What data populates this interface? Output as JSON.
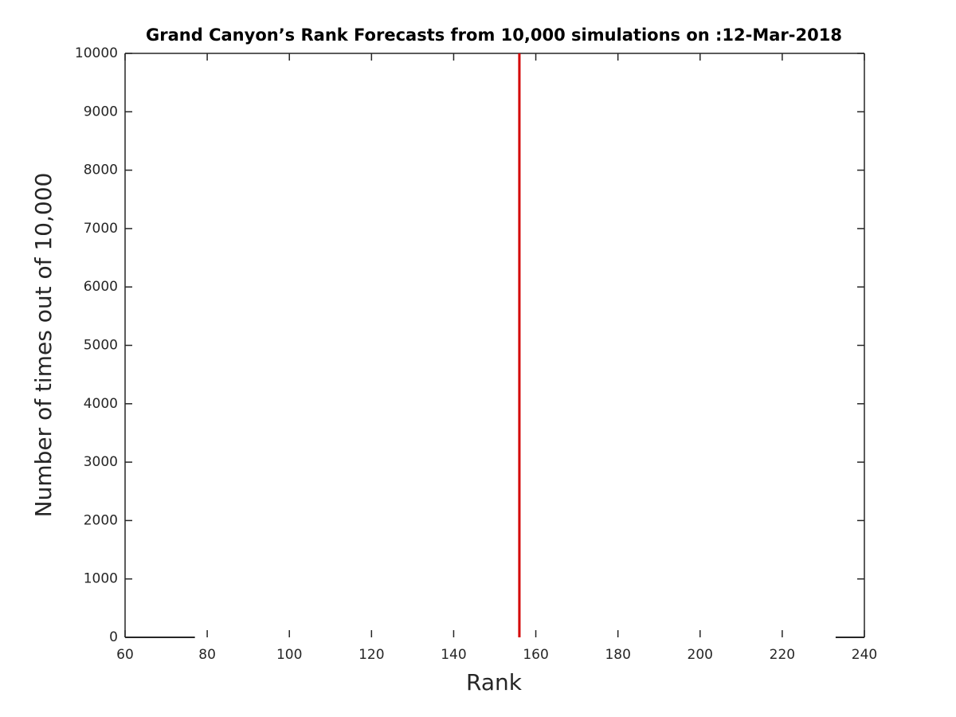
{
  "chart_data": {
    "type": "line",
    "title": "Grand Canyon’s Rank Forecasts from 10,000 simulations on :12-Mar-2018",
    "xlabel": "Rank",
    "ylabel": "Number of times out of 10,000",
    "x": [
      60,
      77,
      77,
      233,
      240
    ],
    "values": [
      0,
      0,
      null,
      0,
      0
    ],
    "color": "#262626",
    "vline": {
      "x": 156,
      "color": "#d40000"
    },
    "xlim": [
      60,
      240
    ],
    "xticks": [
      60,
      80,
      100,
      120,
      140,
      160,
      180,
      200,
      220,
      240
    ],
    "ylim": [
      0,
      10000
    ],
    "yticks": [
      0,
      1000,
      2000,
      3000,
      4000,
      5000,
      6000,
      7000,
      8000,
      9000,
      10000
    ],
    "grid": false
  }
}
